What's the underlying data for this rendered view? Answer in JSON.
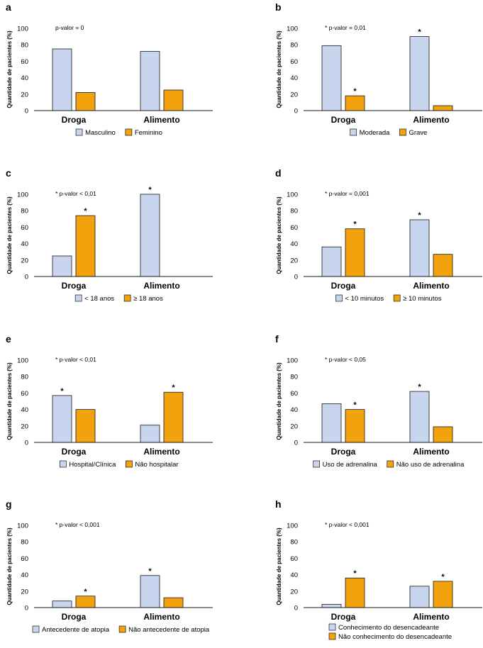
{
  "colors": {
    "series1": "#c7d5ee",
    "series2": "#f2a20c",
    "stroke": "#1a1a1a"
  },
  "chart_data": [
    {
      "type": "bar",
      "panel": "a",
      "ylabel": "Quantidade de pacientes (%)",
      "ylim": [
        0,
        100
      ],
      "yticks": [
        "0",
        "20",
        "40",
        "60",
        "80",
        "100"
      ],
      "categories": [
        "Droga",
        "Alimento"
      ],
      "note": "p-valor = 0",
      "series": [
        {
          "name": "Masculino",
          "values": [
            75,
            72
          ],
          "stars": [
            false,
            false
          ]
        },
        {
          "name": "Feminino",
          "values": [
            22,
            25
          ],
          "stars": [
            false,
            false
          ]
        }
      ],
      "legend_layout": "row"
    },
    {
      "type": "bar",
      "panel": "b",
      "ylabel": "Quantidade de pacientes (%)",
      "ylim": [
        0,
        100
      ],
      "yticks": [
        "0",
        "20",
        "40",
        "60",
        "80",
        "100"
      ],
      "categories": [
        "Droga",
        "Alimento"
      ],
      "note": "* p-valor = 0,01",
      "series": [
        {
          "name": "Moderada",
          "values": [
            79,
            90
          ],
          "stars": [
            false,
            true
          ]
        },
        {
          "name": "Grave",
          "values": [
            18,
            6
          ],
          "stars": [
            true,
            false
          ]
        }
      ],
      "legend_layout": "row"
    },
    {
      "type": "bar",
      "panel": "c",
      "ylabel": "Quantidade de pacientes (%)",
      "ylim": [
        0,
        100
      ],
      "yticks": [
        "0",
        "20",
        "40",
        "60",
        "80",
        "100"
      ],
      "categories": [
        "Droga",
        "Alimento"
      ],
      "note": "* p-valor < 0,01",
      "series": [
        {
          "name": "< 18 anos",
          "values": [
            25,
            100
          ],
          "stars": [
            false,
            true
          ]
        },
        {
          "name": "≥ 18 anos",
          "values": [
            74,
            0
          ],
          "stars": [
            true,
            false
          ]
        }
      ],
      "legend_layout": "row"
    },
    {
      "type": "bar",
      "panel": "d",
      "ylabel": "Quantidade de pacientes (%)",
      "ylim": [
        0,
        100
      ],
      "yticks": [
        "0",
        "20",
        "40",
        "60",
        "80",
        "100"
      ],
      "categories": [
        "Droga",
        "Alimento"
      ],
      "note": "* p-valor = 0,001",
      "series": [
        {
          "name": "< 10 minutos",
          "values": [
            36,
            69
          ],
          "stars": [
            false,
            true
          ]
        },
        {
          "name": "≥ 10 minutos",
          "values": [
            58,
            27
          ],
          "stars": [
            true,
            false
          ]
        }
      ],
      "legend_layout": "row"
    },
    {
      "type": "bar",
      "panel": "e",
      "ylabel": "Quantidade de pacientes (%)",
      "ylim": [
        0,
        100
      ],
      "yticks": [
        "0",
        "20",
        "40",
        "60",
        "80",
        "100"
      ],
      "categories": [
        "Droga",
        "Alimento"
      ],
      "note": "* p-valor < 0,01",
      "series": [
        {
          "name": "Hospital/Clínica",
          "values": [
            57,
            21
          ],
          "stars": [
            true,
            false
          ]
        },
        {
          "name": "Não hospitalar",
          "values": [
            40,
            61
          ],
          "stars": [
            false,
            true
          ]
        }
      ],
      "legend_layout": "row"
    },
    {
      "type": "bar",
      "panel": "f",
      "ylabel": "Quantidade de pacientes (%)",
      "ylim": [
        0,
        100
      ],
      "yticks": [
        "0",
        "20",
        "40",
        "60",
        "80",
        "100"
      ],
      "categories": [
        "Droga",
        "Alimento"
      ],
      "note": "* p-valor < 0,05",
      "series": [
        {
          "name": "Uso de adrenalina",
          "values": [
            47,
            62
          ],
          "stars": [
            false,
            true
          ]
        },
        {
          "name": "Não uso de adrenalina",
          "values": [
            40,
            19
          ],
          "stars": [
            true,
            false
          ]
        }
      ],
      "legend_layout": "row"
    },
    {
      "type": "bar",
      "panel": "g",
      "ylabel": "Quantidade de pacientes (%)",
      "ylim": [
        0,
        100
      ],
      "yticks": [
        "0",
        "20",
        "40",
        "60",
        "80",
        "100"
      ],
      "categories": [
        "Droga",
        "Alimento"
      ],
      "note": "* p-valor < 0,001",
      "series": [
        {
          "name": "Antecedente de atopia",
          "values": [
            8,
            39
          ],
          "stars": [
            false,
            true
          ]
        },
        {
          "name": "Não antecedente de atopia",
          "values": [
            14,
            12
          ],
          "stars": [
            true,
            false
          ]
        }
      ],
      "legend_layout": "row"
    },
    {
      "type": "bar",
      "panel": "h",
      "ylabel": "Quantidade de pacientes (%)",
      "ylim": [
        0,
        100
      ],
      "yticks": [
        "0",
        "20",
        "40",
        "60",
        "80",
        "100"
      ],
      "categories": [
        "Droga",
        "Alimento"
      ],
      "note": "* p-valor < 0,001",
      "series": [
        {
          "name": "Conhecimento do desencadeante",
          "values": [
            4,
            26
          ],
          "stars": [
            false,
            false
          ]
        },
        {
          "name": "Não conhecimento do desencadeante",
          "values": [
            36,
            32
          ],
          "stars": [
            true,
            true
          ]
        }
      ],
      "legend_layout": "column"
    }
  ]
}
